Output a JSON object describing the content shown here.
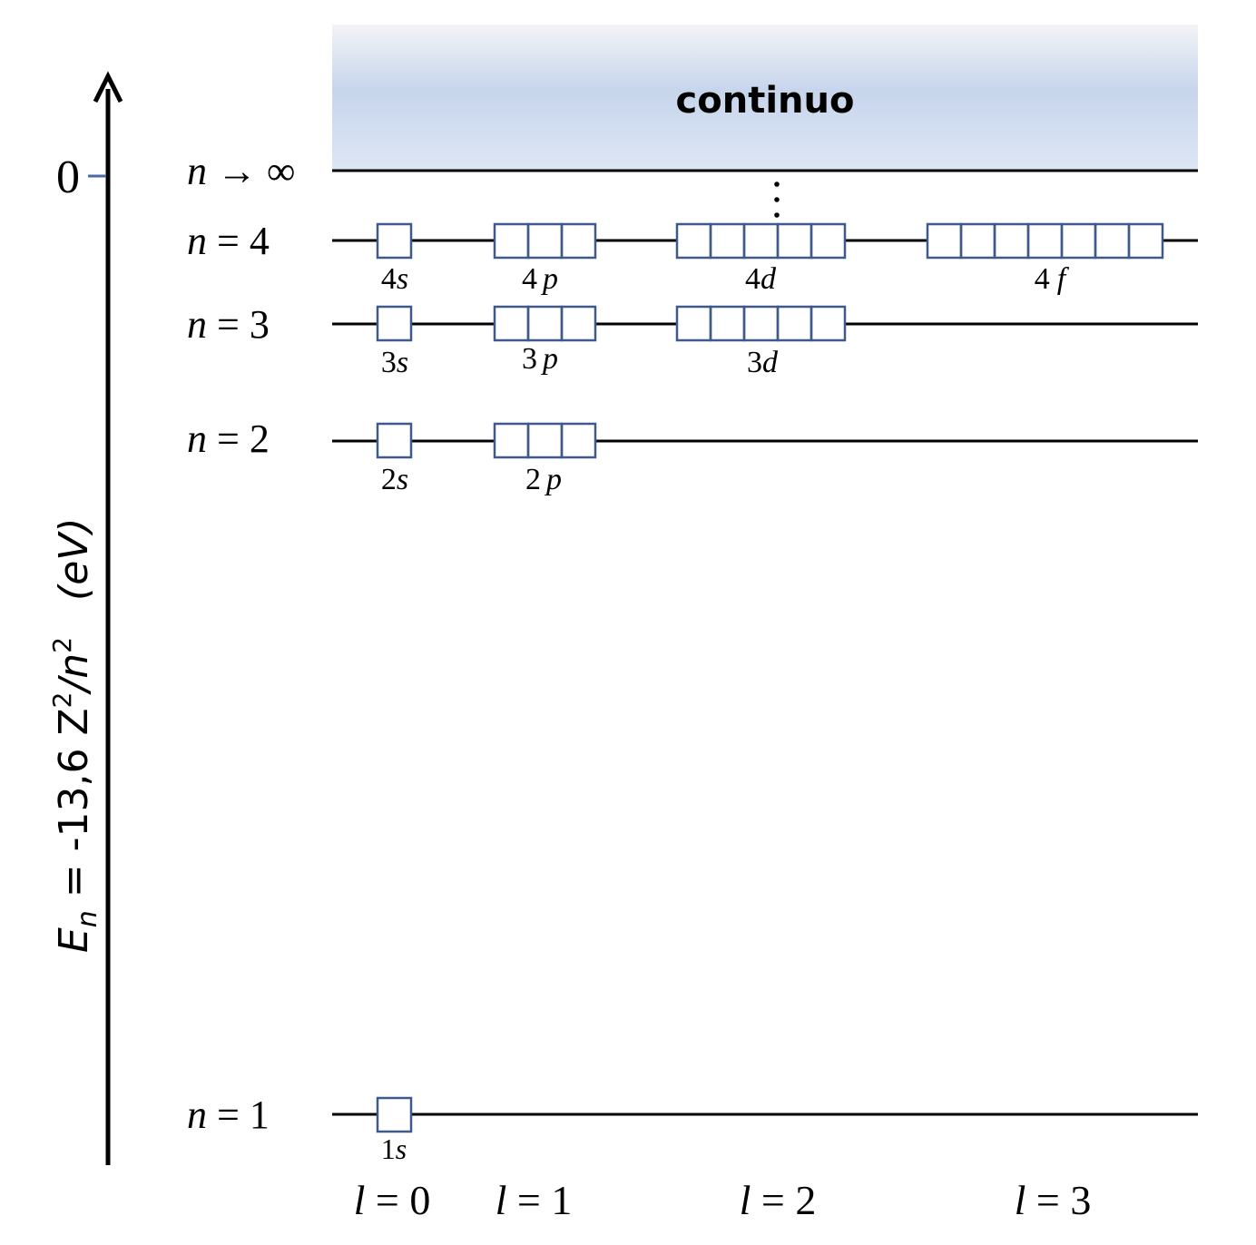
{
  "axis": {
    "label_E": "E",
    "label_E_sub": "n",
    "label_eq": " = -13,6 Z",
    "label_Z_exp": "2",
    "label_slash_n": "/n",
    "label_n_exp": "2",
    "label_unit": "(eV)",
    "zero_tick": "0"
  },
  "continuum": {
    "label": "continuo",
    "limit_label_n": "n",
    "limit_label_rest": " → ∞",
    "gradient_top": "#f3f4f6",
    "gradient_mid": "#c7d5ec",
    "gradient_bottom": "#dde6f4"
  },
  "levels": [
    {
      "n": "n",
      "eq": " = 4",
      "value": 4
    },
    {
      "n": "n",
      "eq": " = 3",
      "value": 3
    },
    {
      "n": "n",
      "eq": " = 2",
      "value": 2
    },
    {
      "n": "n",
      "eq": " = 1",
      "value": 1
    }
  ],
  "orbitals": [
    {
      "num": "4",
      "letter": "s",
      "boxes": 1
    },
    {
      "num": "4",
      "letter": "p",
      "boxes": 3
    },
    {
      "num": "4",
      "letter": "d",
      "boxes": 5
    },
    {
      "num": "4",
      "letter": "f",
      "boxes": 7
    },
    {
      "num": "3",
      "letter": "s",
      "boxes": 1
    },
    {
      "num": "3",
      "letter": "p",
      "boxes": 3
    },
    {
      "num": "3",
      "letter": "d",
      "boxes": 5
    },
    {
      "num": "2",
      "letter": "s",
      "boxes": 1
    },
    {
      "num": "2",
      "letter": "p",
      "boxes": 3
    },
    {
      "num": "1",
      "letter": "s",
      "boxes": 1
    }
  ],
  "l_labels": [
    {
      "l": "l",
      "eq": " = 0"
    },
    {
      "l": "l",
      "eq": " = 1"
    },
    {
      "l": "l",
      "eq": " = 2"
    },
    {
      "l": "l",
      "eq": " = 3"
    }
  ],
  "colors": {
    "line": "#000000",
    "box_stroke": "#3f5a8a",
    "zero_tick": "#4a6aa0"
  }
}
